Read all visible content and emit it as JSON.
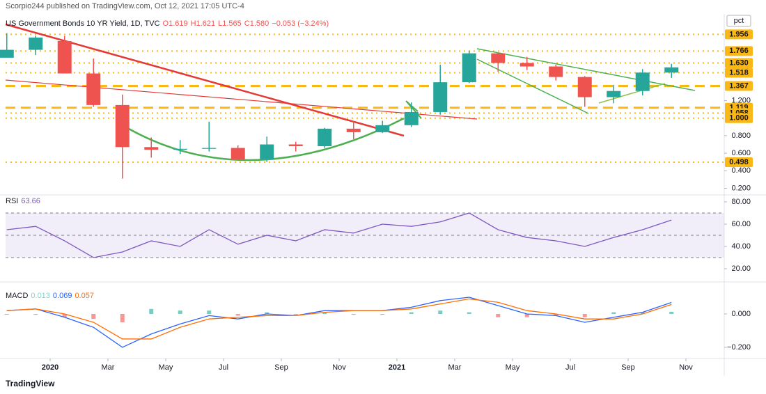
{
  "header": "Scorpio244 published on TradingView.com, Oct 12, 2021 17:05 UTC-4",
  "footer": "TradingView",
  "chart_data": [
    {
      "type": "candlestick",
      "title": "US Government Bonds 10 YR Yield, 1D, TVC",
      "quote": [
        "O1.619",
        "H1.621",
        "L1.565",
        "C1.580",
        "−0.053 (−3.24%)"
      ],
      "unit": "pct",
      "x": [
        "2019-11",
        "2019-12",
        "2020-01",
        "2020-02",
        "2020-03",
        "2020-04",
        "2020-05",
        "2020-06",
        "2020-07",
        "2020-08",
        "2020-09",
        "2020-10",
        "2020-11",
        "2020-12",
        "2021-01",
        "2021-02",
        "2021-03",
        "2021-04",
        "2021-05",
        "2021-06",
        "2021-07",
        "2021-08",
        "2021-09",
        "2021-10"
      ],
      "open": [
        1.69,
        1.78,
        1.88,
        1.51,
        1.15,
        0.67,
        0.64,
        0.65,
        0.66,
        0.53,
        0.7,
        0.68,
        0.88,
        0.84,
        0.92,
        1.07,
        1.41,
        1.74,
        1.63,
        1.59,
        1.47,
        1.24,
        1.31,
        1.52
      ],
      "high": [
        1.97,
        1.94,
        1.94,
        1.68,
        1.27,
        0.78,
        0.75,
        0.96,
        0.69,
        0.79,
        0.73,
        0.89,
        0.97,
        0.97,
        1.18,
        1.61,
        1.77,
        1.74,
        1.7,
        1.61,
        1.48,
        1.38,
        1.56,
        1.62
      ],
      "low": [
        1.71,
        1.72,
        1.51,
        1.13,
        0.31,
        0.55,
        0.59,
        0.62,
        0.52,
        0.5,
        0.62,
        0.66,
        0.76,
        0.83,
        0.9,
        1.04,
        1.4,
        1.53,
        1.55,
        1.43,
        1.13,
        1.17,
        1.26,
        1.46
      ],
      "close": [
        1.78,
        1.92,
        1.51,
        1.15,
        0.67,
        0.64,
        0.65,
        0.66,
        0.53,
        0.7,
        0.68,
        0.88,
        0.84,
        0.92,
        1.07,
        1.41,
        1.74,
        1.63,
        1.59,
        1.47,
        1.24,
        1.31,
        1.52,
        1.58
      ],
      "up_color": "#26a69a",
      "down_color": "#ef5350",
      "ylim": [
        0.14,
        2.15
      ],
      "yticks": [
        {
          "value": 0.2,
          "label": "0.200"
        },
        {
          "value": 0.4,
          "label": "0.400"
        },
        {
          "value": 0.6,
          "label": "0.600"
        },
        {
          "value": 0.8,
          "label": "0.800"
        },
        {
          "value": 1.2,
          "label": "1.200"
        }
      ],
      "levels": [
        {
          "value": 1.956,
          "label": "1.956",
          "style": "dotted"
        },
        {
          "value": 1.766,
          "label": "1.766",
          "style": "dotted"
        },
        {
          "value": 1.63,
          "label": "1.630",
          "style": "dotted"
        },
        {
          "value": 1.518,
          "label": "1.518",
          "style": "dotted"
        },
        {
          "value": 1.367,
          "label": "1.367",
          "style": "dashed"
        },
        {
          "value": 1.119,
          "label": "1.119",
          "style": "dashed"
        },
        {
          "value": 1.058,
          "label": "1.058",
          "style": "dotted"
        },
        {
          "value": 1,
          "label": "1.000",
          "style": "dotted"
        },
        {
          "value": 0.498,
          "label": "0.498",
          "style": "dotted"
        }
      ],
      "level_color": "#f9b816",
      "xticks": [
        {
          "value": "2020-01",
          "label": "2020"
        },
        {
          "value": "2020-03",
          "label": "Mar"
        },
        {
          "value": "2020-05",
          "label": "May"
        },
        {
          "value": "2020-07",
          "label": "Jul"
        },
        {
          "value": "2020-09",
          "label": "Sep"
        },
        {
          "value": "2020-11",
          "label": "Nov"
        },
        {
          "value": "2021-01",
          "label": "2021"
        },
        {
          "value": "2021-03",
          "label": "Mar"
        },
        {
          "value": "2021-05",
          "label": "May"
        },
        {
          "value": "2021-07",
          "label": "Jul"
        },
        {
          "value": "2021-09",
          "label": "Sep"
        },
        {
          "value": "2021-11",
          "label": "Nov"
        }
      ]
    },
    {
      "type": "line",
      "title": "RSI",
      "color": "#7e57c2",
      "values": [
        55,
        58,
        45,
        30,
        35,
        45,
        40,
        55,
        42,
        50,
        45,
        55,
        52,
        60,
        58,
        62,
        70,
        55,
        48,
        45,
        40,
        48,
        55,
        63.66
      ],
      "ylim": [
        11.25,
        83.1
      ],
      "yticks": [
        {
          "value": 20,
          "label": "20.00"
        },
        {
          "value": 40,
          "label": "40.00"
        },
        {
          "value": 60,
          "label": "60.00"
        },
        {
          "value": 80,
          "label": "80.00"
        }
      ],
      "band": [
        30,
        70
      ],
      "midline": 50
    },
    {
      "type": "macd",
      "title": "MACD",
      "histogram": [
        0,
        0,
        -0.02,
        -0.03,
        -0.05,
        0.03,
        0.02,
        0.02,
        -0.01,
        0.01,
        0,
        0.01,
        0,
        0,
        0.01,
        0.02,
        0.01,
        -0.02,
        -0.02,
        -0.01,
        -0.02,
        0.01,
        0.01,
        0.013
      ],
      "macd": [
        0.02,
        0.03,
        -0.02,
        -0.08,
        -0.2,
        -0.12,
        -0.06,
        -0.01,
        -0.03,
        0,
        -0.01,
        0.02,
        0.02,
        0.02,
        0.04,
        0.08,
        0.1,
        0.05,
        0,
        -0.01,
        -0.05,
        -0.02,
        0.01,
        0.069
      ],
      "signal": [
        0.02,
        0.03,
        0,
        -0.05,
        -0.15,
        -0.15,
        -0.08,
        -0.03,
        -0.02,
        -0.01,
        -0.01,
        0.01,
        0.02,
        0.02,
        0.03,
        0.06,
        0.09,
        0.07,
        0.02,
        0,
        -0.03,
        -0.03,
        0,
        0.057
      ],
      "colors": {
        "histogram_up": "#26a69a",
        "histogram_down": "#ef5350",
        "histogram_legend": "#7fd3c9",
        "macd": "#2962ff",
        "signal": "#ff6d00"
      },
      "ylim": [
        -0.267,
        0.171
      ],
      "yticks": [
        {
          "value": 0,
          "label": "0.000"
        },
        {
          "value": -0.2,
          "label": "−0.200"
        }
      ]
    }
  ]
}
